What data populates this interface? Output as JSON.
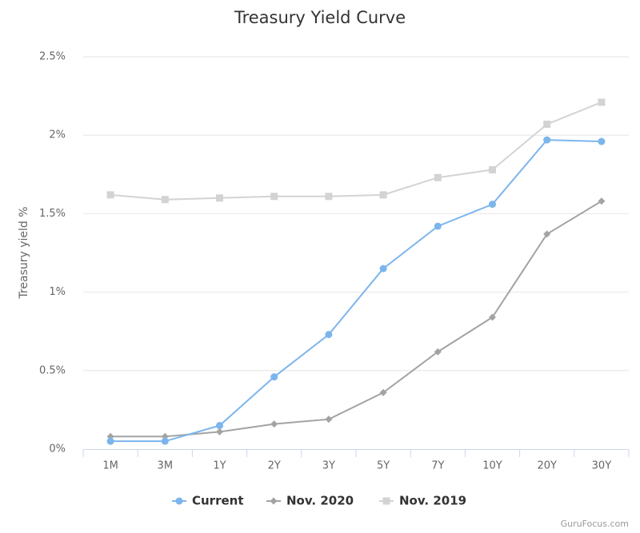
{
  "chart_data": {
    "type": "line",
    "title": "Treasury Yield Curve",
    "y_label": "Treasury yield %",
    "credit": "GuruFocus.com",
    "categories": [
      "1M",
      "3M",
      "1Y",
      "2Y",
      "3Y",
      "5Y",
      "7Y",
      "10Y",
      "20Y",
      "30Y"
    ],
    "series": [
      {
        "name": "Current",
        "color": "#7cb5ec",
        "values": [
          0.05,
          0.05,
          0.15,
          0.46,
          0.73,
          1.15,
          1.42,
          1.56,
          1.97,
          1.96
        ]
      },
      {
        "name": "Nov. 2020",
        "color": "#a3a3a3",
        "values": [
          0.08,
          0.08,
          0.11,
          0.16,
          0.19,
          0.36,
          0.62,
          0.84,
          1.37,
          1.58
        ]
      },
      {
        "name": "Nov. 2019",
        "color": "#d3d3d3",
        "values": [
          1.62,
          1.59,
          1.6,
          1.61,
          1.61,
          1.62,
          1.73,
          1.78,
          2.07,
          2.21
        ]
      }
    ],
    "ylim": [
      0,
      2.5
    ],
    "yticks": [
      {
        "value": 0,
        "label": "0%"
      },
      {
        "value": 0.5,
        "label": "0.5%"
      },
      {
        "value": 1,
        "label": "1%"
      },
      {
        "value": 1.5,
        "label": "1.5%"
      },
      {
        "value": 2,
        "label": "2%"
      },
      {
        "value": 2.5,
        "label": "2.5%"
      }
    ],
    "grid": true,
    "legend": "bottom"
  }
}
